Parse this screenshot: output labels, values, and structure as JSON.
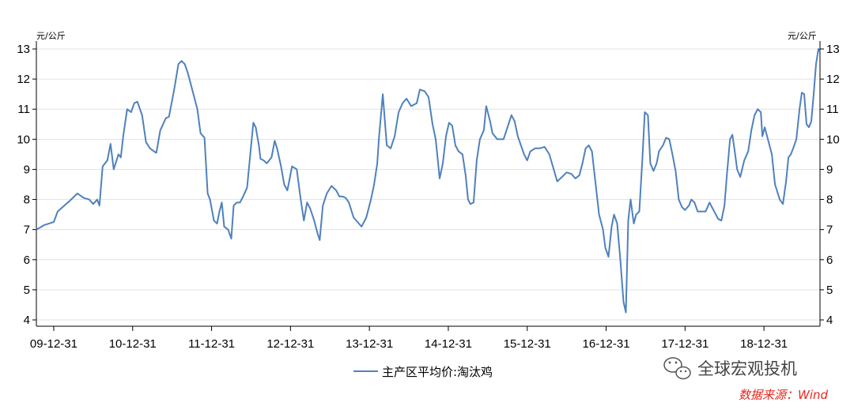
{
  "chart_data": {
    "type": "line",
    "x_tick_labels": [
      "09-12-31",
      "10-12-31",
      "11-12-31",
      "12-12-31",
      "13-12-31",
      "14-12-31",
      "15-12-31",
      "16-12-31",
      "17-12-31",
      "18-12-31"
    ],
    "y_left_unit": "元/公斤",
    "y_right_unit": "元/公斤",
    "ylim": [
      4,
      13
    ],
    "y_ticks": [
      4,
      5,
      6,
      7,
      8,
      9,
      10,
      11,
      12,
      13
    ],
    "xlim": [
      2009.78,
      2019.71
    ],
    "grid": "horizontal",
    "legend_position": "bottom-center",
    "series": [
      {
        "name": "主产区平均价:淘汰鸡",
        "color": "#4f81bd",
        "points": [
          [
            2009.78,
            7.0
          ],
          [
            2009.88,
            7.15
          ],
          [
            2010.0,
            7.25
          ],
          [
            2010.05,
            7.6
          ],
          [
            2010.2,
            7.95
          ],
          [
            2010.3,
            8.2
          ],
          [
            2010.38,
            8.05
          ],
          [
            2010.45,
            8.0
          ],
          [
            2010.5,
            7.85
          ],
          [
            2010.55,
            8.0
          ],
          [
            2010.58,
            7.8
          ],
          [
            2010.62,
            9.1
          ],
          [
            2010.68,
            9.3
          ],
          [
            2010.72,
            9.85
          ],
          [
            2010.76,
            9.0
          ],
          [
            2010.82,
            9.5
          ],
          [
            2010.85,
            9.4
          ],
          [
            2010.88,
            10.1
          ],
          [
            2010.93,
            11.0
          ],
          [
            2010.98,
            10.9
          ],
          [
            2011.02,
            11.2
          ],
          [
            2011.06,
            11.25
          ],
          [
            2011.12,
            10.8
          ],
          [
            2011.17,
            9.9
          ],
          [
            2011.22,
            9.7
          ],
          [
            2011.27,
            9.6
          ],
          [
            2011.3,
            9.55
          ],
          [
            2011.35,
            10.3
          ],
          [
            2011.42,
            10.7
          ],
          [
            2011.46,
            10.75
          ],
          [
            2011.53,
            11.7
          ],
          [
            2011.58,
            12.5
          ],
          [
            2011.62,
            12.6
          ],
          [
            2011.66,
            12.5
          ],
          [
            2011.7,
            12.2
          ],
          [
            2011.76,
            11.6
          ],
          [
            2011.82,
            11.0
          ],
          [
            2011.86,
            10.2
          ],
          [
            2011.91,
            10.05
          ],
          [
            2011.95,
            8.2
          ],
          [
            2011.98,
            8.0
          ],
          [
            2012.03,
            7.3
          ],
          [
            2012.07,
            7.2
          ],
          [
            2012.1,
            7.6
          ],
          [
            2012.13,
            7.9
          ],
          [
            2012.16,
            7.1
          ],
          [
            2012.21,
            7.0
          ],
          [
            2012.25,
            6.7
          ],
          [
            2012.28,
            7.8
          ],
          [
            2012.32,
            7.9
          ],
          [
            2012.36,
            7.9
          ],
          [
            2012.4,
            8.1
          ],
          [
            2012.45,
            8.4
          ],
          [
            2012.49,
            9.5
          ],
          [
            2012.53,
            10.55
          ],
          [
            2012.56,
            10.4
          ],
          [
            2012.6,
            9.8
          ],
          [
            2012.62,
            9.35
          ],
          [
            2012.66,
            9.3
          ],
          [
            2012.7,
            9.2
          ],
          [
            2012.76,
            9.4
          ],
          [
            2012.8,
            9.95
          ],
          [
            2012.83,
            9.7
          ],
          [
            2012.88,
            9.1
          ],
          [
            2012.92,
            8.5
          ],
          [
            2012.96,
            8.3
          ],
          [
            2012.99,
            8.7
          ],
          [
            2013.02,
            9.1
          ],
          [
            2013.08,
            9.0
          ],
          [
            2013.13,
            8.0
          ],
          [
            2013.17,
            7.3
          ],
          [
            2013.21,
            7.9
          ],
          [
            2013.25,
            7.7
          ],
          [
            2013.3,
            7.3
          ],
          [
            2013.34,
            6.9
          ],
          [
            2013.37,
            6.65
          ],
          [
            2013.41,
            7.8
          ],
          [
            2013.46,
            8.2
          ],
          [
            2013.52,
            8.45
          ],
          [
            2013.58,
            8.3
          ],
          [
            2013.62,
            8.1
          ],
          [
            2013.66,
            8.1
          ],
          [
            2013.7,
            8.05
          ],
          [
            2013.74,
            7.9
          ],
          [
            2013.8,
            7.4
          ],
          [
            2013.85,
            7.25
          ],
          [
            2013.9,
            7.1
          ],
          [
            2013.96,
            7.4
          ],
          [
            2014.02,
            8.0
          ],
          [
            2014.06,
            8.5
          ],
          [
            2014.1,
            9.2
          ],
          [
            2014.12,
            10.0
          ],
          [
            2014.17,
            11.5
          ],
          [
            2014.22,
            9.8
          ],
          [
            2014.27,
            9.7
          ],
          [
            2014.32,
            10.1
          ],
          [
            2014.37,
            10.9
          ],
          [
            2014.42,
            11.2
          ],
          [
            2014.47,
            11.35
          ],
          [
            2014.53,
            11.1
          ],
          [
            2014.6,
            11.2
          ],
          [
            2014.64,
            11.65
          ],
          [
            2014.7,
            11.6
          ],
          [
            2014.75,
            11.4
          ],
          [
            2014.8,
            10.5
          ],
          [
            2014.84,
            10.0
          ],
          [
            2014.89,
            8.7
          ],
          [
            2014.93,
            9.2
          ],
          [
            2014.97,
            10.1
          ],
          [
            2015.01,
            10.55
          ],
          [
            2015.05,
            10.45
          ],
          [
            2015.09,
            9.8
          ],
          [
            2015.13,
            9.6
          ],
          [
            2015.18,
            9.5
          ],
          [
            2015.22,
            8.8
          ],
          [
            2015.25,
            8.0
          ],
          [
            2015.28,
            7.85
          ],
          [
            2015.32,
            7.9
          ],
          [
            2015.36,
            9.3
          ],
          [
            2015.4,
            10.0
          ],
          [
            2015.45,
            10.3
          ],
          [
            2015.48,
            11.1
          ],
          [
            2015.53,
            10.6
          ],
          [
            2015.56,
            10.2
          ],
          [
            2015.62,
            10.0
          ],
          [
            2015.7,
            10.0
          ],
          [
            2015.75,
            10.4
          ],
          [
            2015.8,
            10.8
          ],
          [
            2015.84,
            10.6
          ],
          [
            2015.88,
            10.1
          ],
          [
            2015.92,
            9.8
          ],
          [
            2015.96,
            9.5
          ],
          [
            2016.0,
            9.3
          ],
          [
            2016.04,
            9.6
          ],
          [
            2016.1,
            9.7
          ],
          [
            2016.16,
            9.7
          ],
          [
            2016.22,
            9.75
          ],
          [
            2016.28,
            9.5
          ],
          [
            2016.33,
            9.05
          ],
          [
            2016.38,
            8.6
          ],
          [
            2016.44,
            8.75
          ],
          [
            2016.5,
            8.9
          ],
          [
            2016.56,
            8.85
          ],
          [
            2016.61,
            8.7
          ],
          [
            2016.66,
            8.8
          ],
          [
            2016.7,
            9.2
          ],
          [
            2016.74,
            9.7
          ],
          [
            2016.78,
            9.8
          ],
          [
            2016.82,
            9.6
          ],
          [
            2016.85,
            8.9
          ],
          [
            2016.88,
            8.2
          ],
          [
            2016.91,
            7.5
          ],
          [
            2016.96,
            7.0
          ],
          [
            2016.99,
            6.4
          ],
          [
            2017.03,
            6.1
          ],
          [
            2017.07,
            7.1
          ],
          [
            2017.1,
            7.5
          ],
          [
            2017.14,
            7.2
          ],
          [
            2017.18,
            6.0
          ],
          [
            2017.22,
            4.6
          ],
          [
            2017.25,
            4.25
          ],
          [
            2017.28,
            7.3
          ],
          [
            2017.31,
            8.0
          ],
          [
            2017.35,
            7.2
          ],
          [
            2017.38,
            7.5
          ],
          [
            2017.42,
            7.6
          ],
          [
            2017.46,
            9.4
          ],
          [
            2017.49,
            10.9
          ],
          [
            2017.53,
            10.8
          ],
          [
            2017.56,
            9.2
          ],
          [
            2017.6,
            8.95
          ],
          [
            2017.64,
            9.2
          ],
          [
            2017.67,
            9.6
          ],
          [
            2017.72,
            9.8
          ],
          [
            2017.76,
            10.05
          ],
          [
            2017.8,
            10.0
          ],
          [
            2017.84,
            9.5
          ],
          [
            2017.88,
            8.95
          ],
          [
            2017.92,
            8.0
          ],
          [
            2017.96,
            7.75
          ],
          [
            2018.0,
            7.65
          ],
          [
            2018.05,
            7.8
          ],
          [
            2018.08,
            8.0
          ],
          [
            2018.12,
            7.9
          ],
          [
            2018.16,
            7.6
          ],
          [
            2018.21,
            7.6
          ],
          [
            2018.26,
            7.6
          ],
          [
            2018.31,
            7.9
          ],
          [
            2018.37,
            7.6
          ],
          [
            2018.42,
            7.35
          ],
          [
            2018.46,
            7.3
          ],
          [
            2018.5,
            7.8
          ],
          [
            2018.53,
            8.8
          ],
          [
            2018.57,
            10.0
          ],
          [
            2018.6,
            10.15
          ],
          [
            2018.63,
            9.6
          ],
          [
            2018.66,
            9.0
          ],
          [
            2018.7,
            8.75
          ],
          [
            2018.75,
            9.3
          ],
          [
            2018.8,
            9.6
          ],
          [
            2018.84,
            10.3
          ],
          [
            2018.88,
            10.8
          ],
          [
            2018.92,
            11.0
          ],
          [
            2018.96,
            10.9
          ],
          [
            2018.98,
            10.1
          ],
          [
            2019.01,
            10.4
          ],
          [
            2019.05,
            10.0
          ],
          [
            2019.1,
            9.5
          ],
          [
            2019.14,
            8.5
          ],
          [
            2019.2,
            8.0
          ],
          [
            2019.24,
            7.85
          ],
          [
            2019.28,
            8.6
          ],
          [
            2019.31,
            9.4
          ],
          [
            2019.34,
            9.5
          ],
          [
            2019.37,
            9.7
          ],
          [
            2019.41,
            10.0
          ],
          [
            2019.45,
            11.0
          ],
          [
            2019.48,
            11.55
          ],
          [
            2019.51,
            11.5
          ],
          [
            2019.54,
            10.5
          ],
          [
            2019.57,
            10.4
          ],
          [
            2019.6,
            10.6
          ],
          [
            2019.63,
            11.5
          ],
          [
            2019.66,
            12.5
          ],
          [
            2019.69,
            13.0
          ],
          [
            2019.71,
            12.9
          ]
        ]
      }
    ]
  },
  "watermark": {
    "icon": "wechat-logo-icon",
    "text": "全球宏观投机"
  },
  "source": {
    "text": "数据来源：Wind",
    "color": "#e8261c"
  }
}
